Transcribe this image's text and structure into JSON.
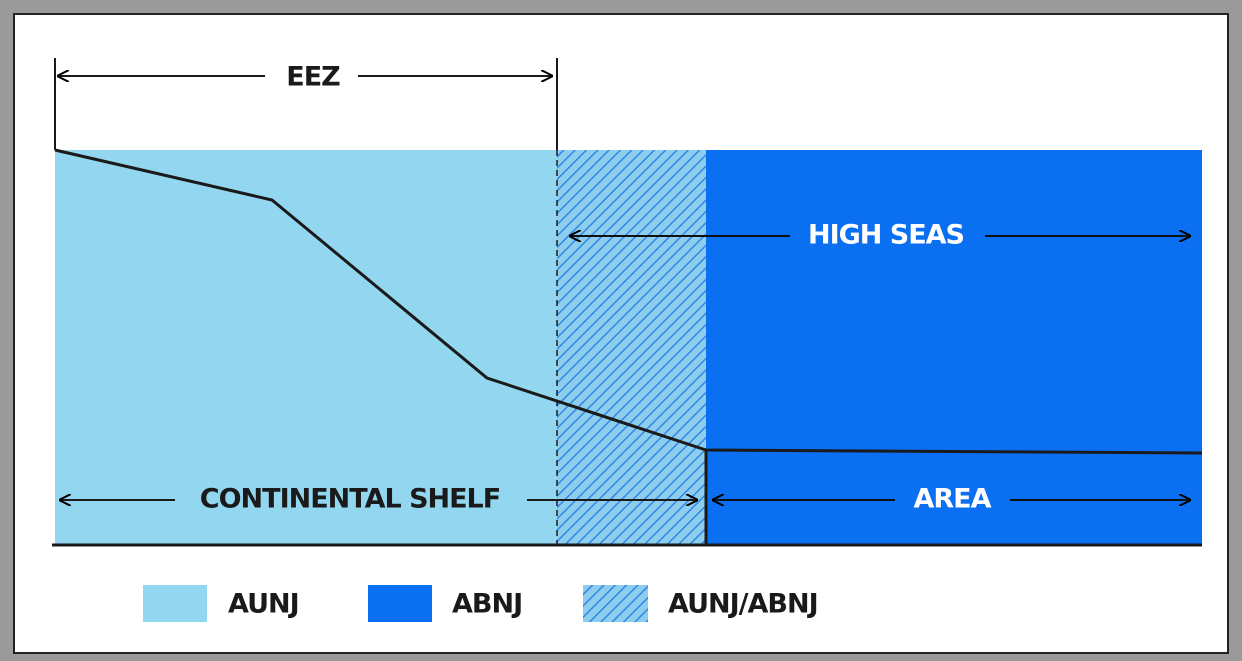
{
  "labels": {
    "eez": "EEZ",
    "high_seas": "HIGH SEAS",
    "continental_shelf": "CONTINENTAL SHELF",
    "area": "AREA"
  },
  "legend": [
    {
      "label": "AUNJ"
    },
    {
      "label": "ABNJ"
    },
    {
      "label": "AUNJ/ABNJ"
    }
  ]
}
